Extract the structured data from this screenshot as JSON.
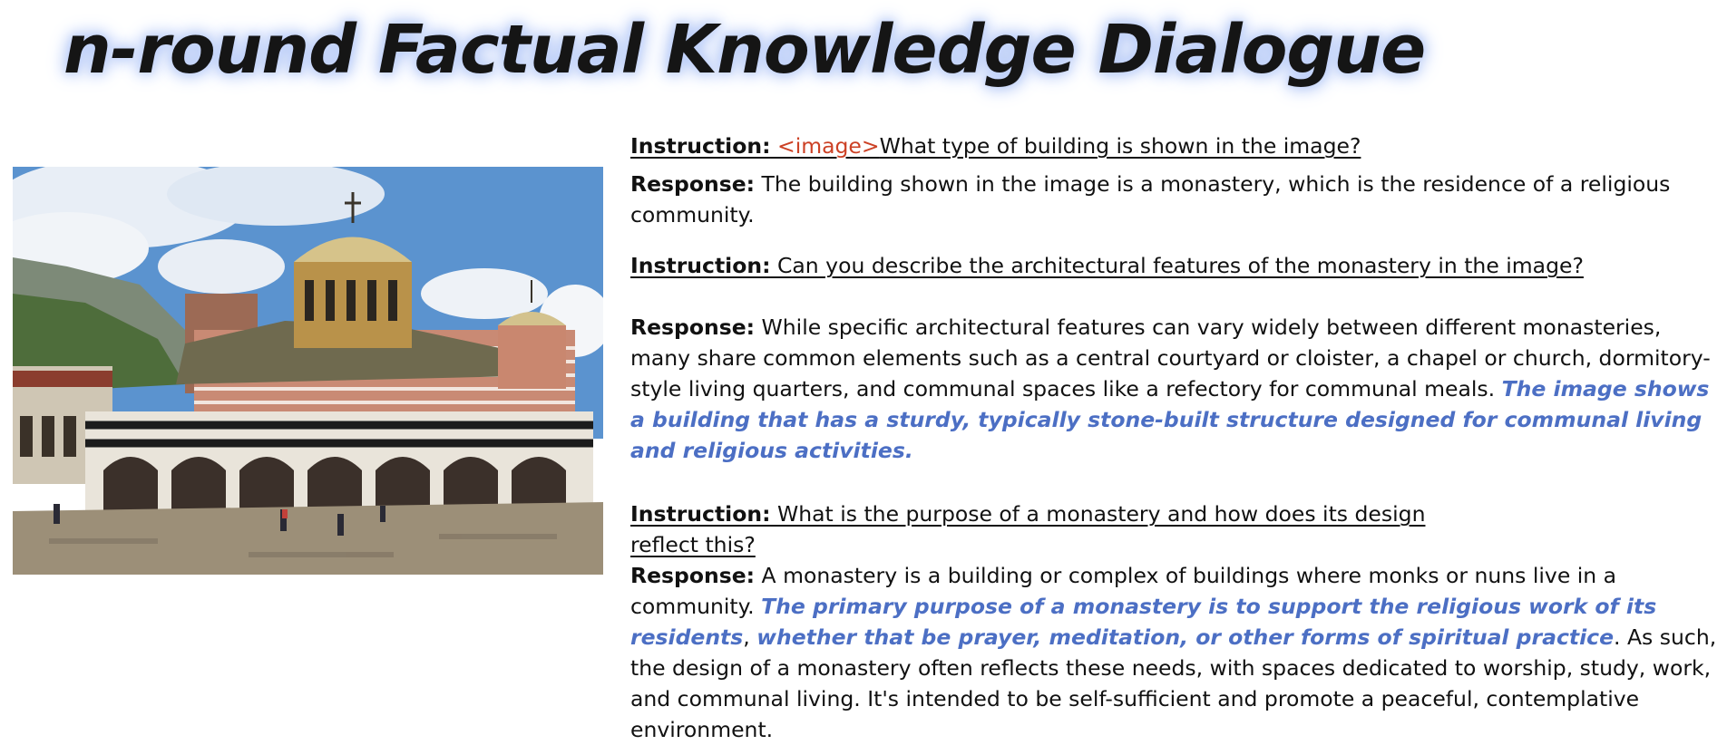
{
  "title": "n-round Factual Knowledge Dialogue",
  "labels": {
    "instruction": "Instruction:",
    "response": "Response:"
  },
  "image_token": "<image>",
  "dialogue": {
    "q1": "What type of building is shown in the image?",
    "r1": "The building shown in the image is a monastery, which is the residence of a religious community.",
    "q2": "Can you describe the architectural features of the monastery in the image?",
    "r2_plain": "While specific architectural features can vary widely between different monasteries, many share common elements such as a central courtyard or cloister, a chapel or church, dormitory-style living quarters, and communal spaces like a refectory for communal meals.",
    "r2_highlight": "The image shows a building that has a sturdy, typically stone-built structure designed for communal living and religious activities.",
    "q3": "What is the purpose of a monastery and how does its design reflect this?",
    "r3_plain_a": "A monastery is a building or complex of buildings where monks or nuns live in a community.",
    "r3_highlight_a": "The primary purpose of a monastery is to support the religious work of its residents",
    "r3_comma": ",",
    "r3_highlight_b": "whether that be prayer, meditation, or other forms of spiritual practice",
    "r3_plain_b": ". As such, the design of a monastery often reflects these needs, with spaces dedicated to worship, study, work, and communal living. It's intended to be self-sufficient and promote a peaceful, contemplative environment."
  },
  "colors": {
    "image_token": "#cc4125",
    "highlight": "#4c6fc4",
    "title_glow": "#aec4f5"
  }
}
